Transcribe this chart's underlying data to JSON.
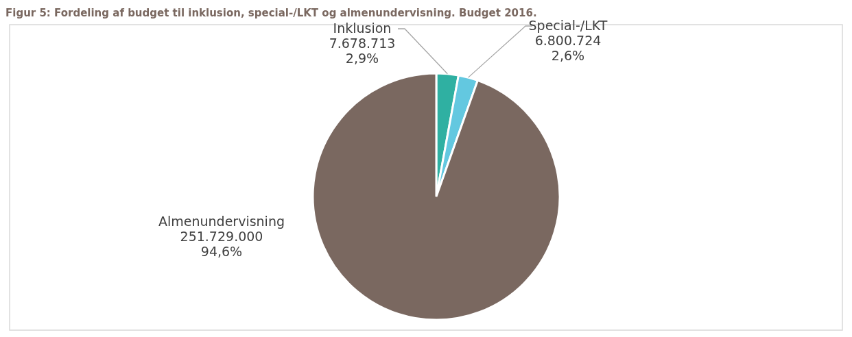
{
  "chart_data": {
    "type": "pie",
    "title": "Figur 5: Fordeling af budget til inklusion, special-/LKT og almenundervisning. Budget 2016.",
    "categories": [
      "Inklusion",
      "Special-/LKT",
      "Almenundervisning"
    ],
    "values": [
      7678713,
      6800724,
      251729000
    ],
    "colors": [
      "#2fb0a2",
      "#63c8e0",
      "#7a6860"
    ],
    "value_labels": [
      "7.678.713\n2,9%",
      "6.800.724\n2,6%",
      "251.729.000\n94,6%"
    ],
    "legend": false
  }
}
